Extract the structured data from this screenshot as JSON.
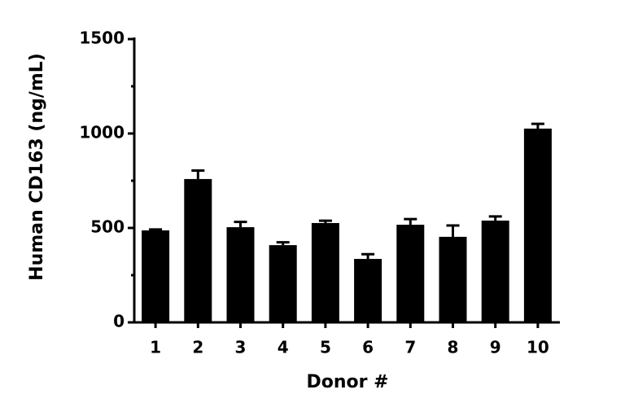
{
  "chart_data": {
    "type": "bar",
    "x_label": "Donor #",
    "y_label": "Human CD163 (ng/mL)",
    "categories": [
      "1",
      "2",
      "3",
      "4",
      "5",
      "6",
      "7",
      "8",
      "9",
      "10"
    ],
    "values": [
      487,
      759,
      504,
      409,
      526,
      336,
      517,
      453,
      539,
      1026
    ],
    "errors": [
      5,
      45,
      28,
      15,
      12,
      25,
      30,
      60,
      22,
      25
    ],
    "color": "#000000",
    "ylim": [
      0,
      1500
    ],
    "yticks": [
      0,
      500,
      1000,
      1500
    ],
    "minor_yticks": [
      250,
      750,
      1250
    ],
    "grid": false
  }
}
